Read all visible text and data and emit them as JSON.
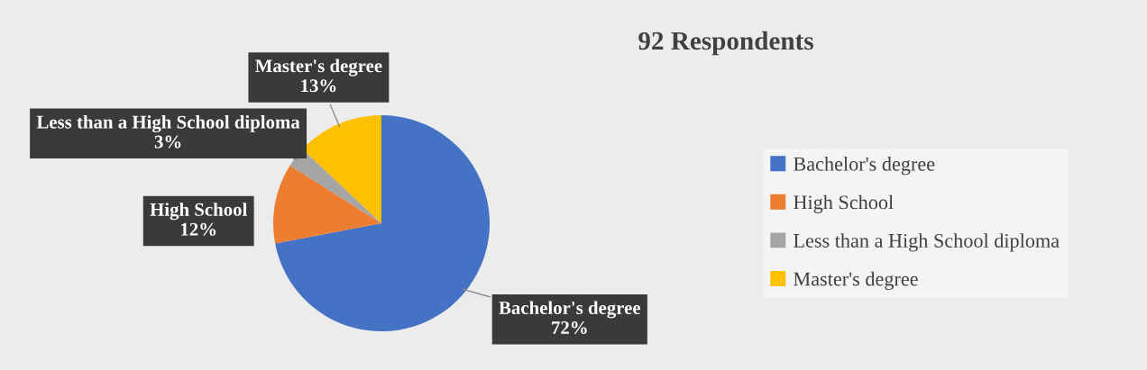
{
  "chart_data": {
    "type": "pie",
    "title": "92 Respondents",
    "categories": [
      "Bachelor's degree",
      "High School",
      "Less than a High School diploma",
      "Master's degree"
    ],
    "values": [
      72,
      12,
      3,
      13
    ],
    "value_labels": [
      "72%",
      "12%",
      "3%",
      "13%"
    ],
    "colors": [
      "#4472c4",
      "#ed7d31",
      "#a5a5a5",
      "#ffc000"
    ],
    "legend": "right"
  }
}
